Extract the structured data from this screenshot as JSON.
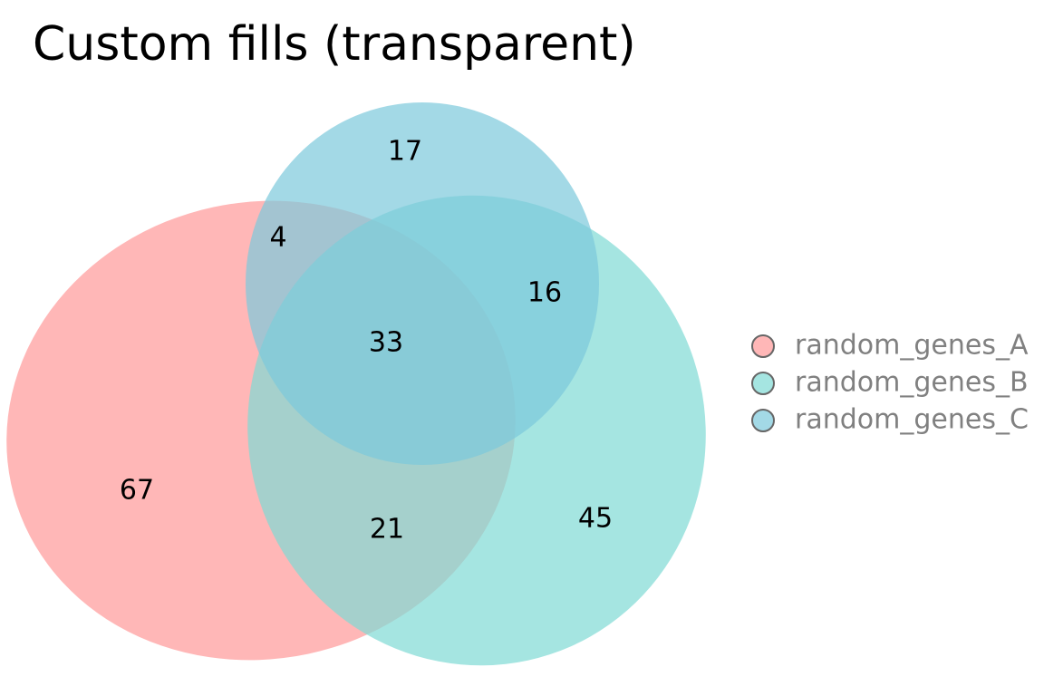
{
  "chart_data": {
    "type": "venn",
    "title": "Custom fills (transparent)",
    "sets": [
      {
        "name": "random_genes_A",
        "color": "#FF9999"
      },
      {
        "name": "random_genes_B",
        "color": "#7FDAD4"
      },
      {
        "name": "random_genes_C",
        "color": "#7CC9DC"
      }
    ],
    "regions": [
      {
        "sets": [
          "random_genes_A"
        ],
        "count": "67"
      },
      {
        "sets": [
          "random_genes_B"
        ],
        "count": "45"
      },
      {
        "sets": [
          "random_genes_C"
        ],
        "count": "17"
      },
      {
        "sets": [
          "random_genes_A",
          "random_genes_C"
        ],
        "count": "4"
      },
      {
        "sets": [
          "random_genes_B",
          "random_genes_C"
        ],
        "count": "16"
      },
      {
        "sets": [
          "random_genes_A",
          "random_genes_B"
        ],
        "count": "21"
      },
      {
        "sets": [
          "random_genes_A",
          "random_genes_B",
          "random_genes_C"
        ],
        "count": "33"
      }
    ],
    "fill_opacity": 0.7,
    "legend_position": "right"
  }
}
